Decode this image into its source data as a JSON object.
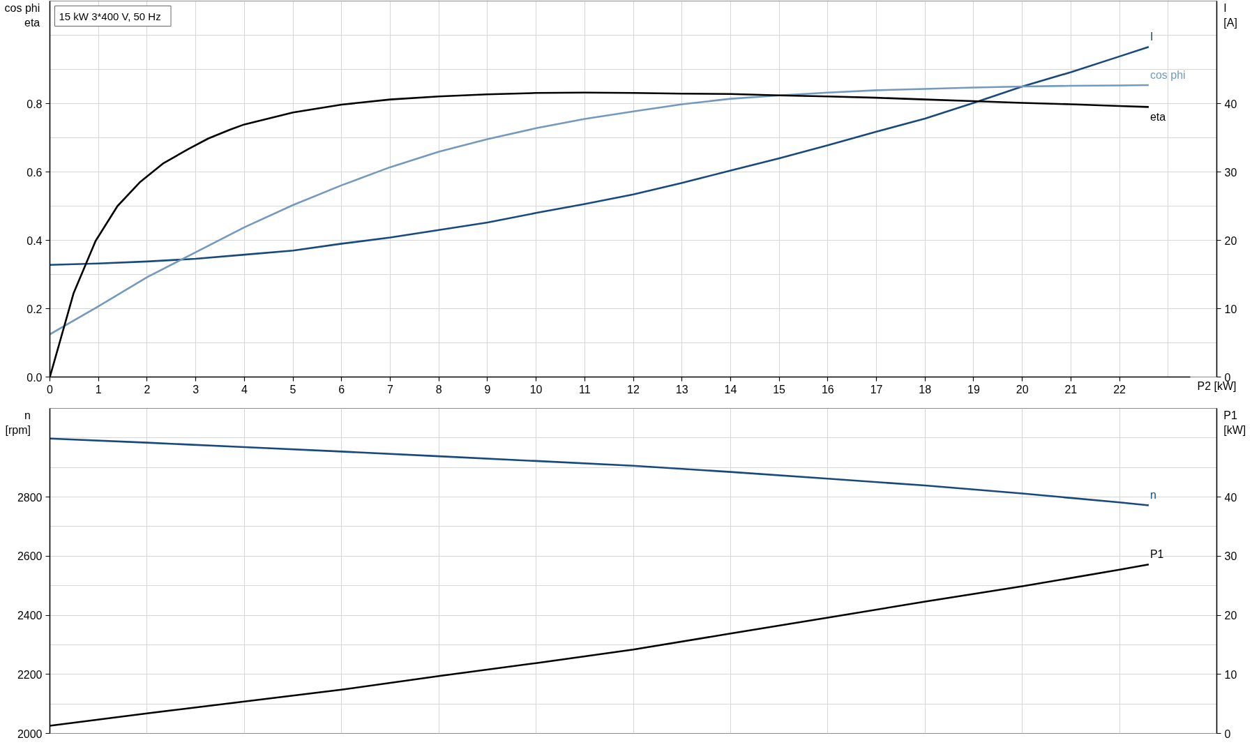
{
  "chart_data": [
    {
      "type": "line",
      "title": "15 kW   3*400 V, 50 Hz",
      "xlabel": "P2 [kW]",
      "ylabel": "cos phi\neta",
      "y2label": "I\n[A]",
      "xlim": [
        0,
        24
      ],
      "xticks": [
        0,
        1,
        2,
        3,
        4,
        5,
        6,
        7,
        8,
        9,
        10,
        11,
        12,
        13,
        14,
        15,
        16,
        17,
        18,
        19,
        20,
        21,
        22,
        {
          "value": 23,
          "label": null
        }
      ],
      "ylim": [
        0,
        1.1
      ],
      "yticks": [
        {
          "value": 0,
          "label": "0.0"
        },
        {
          "value": 0.1,
          "label": null
        },
        0.2,
        {
          "value": 0.3,
          "label": null
        },
        0.4,
        {
          "value": 0.5,
          "label": null
        },
        0.6,
        {
          "value": 0.7,
          "label": null
        },
        0.8,
        {
          "value": 0.9,
          "label": null
        },
        {
          "value": 1.0,
          "label": null
        }
      ],
      "y2lim": [
        0,
        55
      ],
      "y2ticks": [
        0,
        10,
        20,
        30,
        40
      ],
      "grid": true,
      "series": [
        {
          "name": "I",
          "color": "#17497f",
          "axis": "y2",
          "x": [
            0,
            1,
            2,
            3,
            4,
            5,
            6,
            7,
            8,
            9,
            10,
            11,
            12,
            13,
            14,
            15,
            16,
            17,
            18,
            19,
            20,
            21,
            22,
            22.6
          ],
          "values": [
            16.4,
            16.6,
            16.9,
            17.3,
            17.9,
            18.5,
            19.5,
            20.4,
            21.5,
            22.6,
            24.0,
            25.3,
            26.7,
            28.4,
            30.2,
            32.0,
            33.9,
            35.9,
            37.8,
            40.1,
            42.5,
            44.6,
            46.9,
            48.3
          ]
        },
        {
          "name": "cos phi",
          "color": "#7399bf",
          "x": [
            0,
            1,
            2,
            3,
            4,
            5,
            6,
            7,
            8,
            9,
            10,
            11,
            12,
            13,
            14,
            15,
            16,
            17,
            18,
            19,
            20,
            21,
            22,
            22.6
          ],
          "values": [
            0.125,
            0.207,
            0.292,
            0.365,
            0.438,
            0.503,
            0.561,
            0.614,
            0.659,
            0.696,
            0.728,
            0.755,
            0.777,
            0.798,
            0.814,
            0.824,
            0.832,
            0.839,
            0.843,
            0.847,
            0.85,
            0.852,
            0.853,
            0.854
          ]
        },
        {
          "name": "eta",
          "color": "#000000",
          "x": [
            0,
            0.49,
            0.94,
            1.39,
            1.86,
            2.34,
            2.85,
            3.26,
            3.71,
            4,
            5,
            6,
            7,
            8,
            9,
            10,
            11,
            12,
            13,
            14,
            15,
            16,
            17,
            18,
            19,
            20,
            21,
            22,
            22.6
          ],
          "values": [
            0,
            0.246,
            0.398,
            0.5,
            0.571,
            0.626,
            0.667,
            0.698,
            0.724,
            0.739,
            0.774,
            0.797,
            0.812,
            0.821,
            0.827,
            0.831,
            0.832,
            0.831,
            0.829,
            0.828,
            0.824,
            0.821,
            0.817,
            0.812,
            0.807,
            0.802,
            0.798,
            0.793,
            0.79
          ]
        }
      ]
    },
    {
      "type": "line",
      "ylabel": "n\n[rpm]",
      "y2label": "P1\n[kW]",
      "xlim": [
        0,
        24
      ],
      "xticks": [
        0,
        2,
        4,
        6,
        8,
        10,
        12,
        14,
        16,
        18,
        20,
        22
      ],
      "tick_labels": "y",
      "ylim": [
        2000,
        3100
      ],
      "yticks": [
        2000,
        {
          "value": 2100,
          "label": null
        },
        2200,
        {
          "value": 2300,
          "label": null
        },
        2400,
        {
          "value": 2500,
          "label": null
        },
        2600,
        {
          "value": 2700,
          "label": null
        },
        2800,
        {
          "value": 2900,
          "label": null
        },
        {
          "value": 3000,
          "label": null
        }
      ],
      "y2lim": [
        0,
        55
      ],
      "y2ticks": [
        0,
        10,
        20,
        30,
        40
      ],
      "grid": true,
      "series": [
        {
          "name": "n",
          "color": "#17497f",
          "x": [
            0,
            2,
            4,
            6,
            8,
            10,
            12,
            14,
            16,
            18,
            20,
            22,
            22.6
          ],
          "values": [
            2998,
            2984,
            2969,
            2954,
            2938,
            2922,
            2906,
            2885,
            2862,
            2839,
            2812,
            2782,
            2772
          ]
        },
        {
          "name": "P1",
          "color": "#000000",
          "axis": "y2",
          "x": [
            0,
            2,
            4,
            6,
            8,
            10,
            12,
            14,
            16,
            18,
            20,
            22,
            22.6
          ],
          "values": [
            1.3,
            3.4,
            5.4,
            7.4,
            9.7,
            11.9,
            14.2,
            16.9,
            19.6,
            22.3,
            24.9,
            27.7,
            28.6
          ]
        }
      ]
    }
  ]
}
